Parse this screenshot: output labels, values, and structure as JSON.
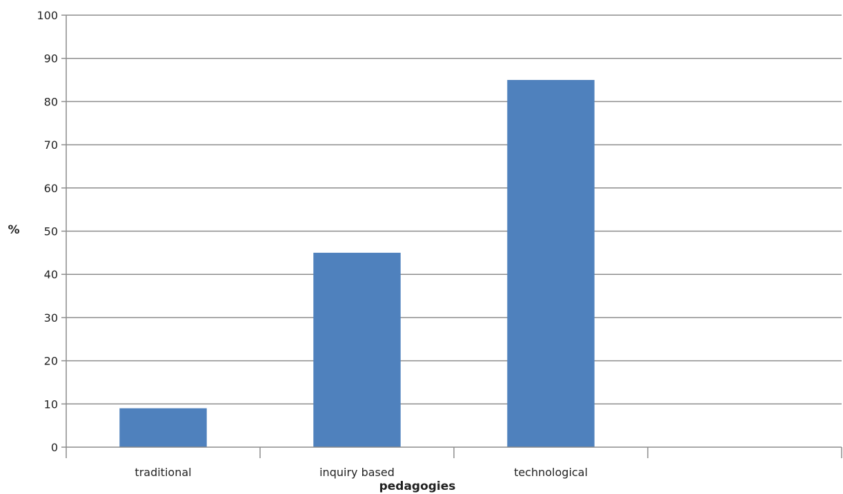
{
  "chart_data": {
    "type": "bar",
    "title": "",
    "xlabel": "pedagogies",
    "ylabel": "%",
    "categories": [
      "traditional",
      "inquiry based",
      "technological",
      ""
    ],
    "values": [
      9,
      45,
      85,
      null
    ],
    "ylim": [
      0,
      100
    ],
    "yticks": [
      "0",
      "10",
      "20",
      "30",
      "40",
      "50",
      "60",
      "70",
      "80",
      "90",
      "100"
    ],
    "grid": true,
    "legend": "none",
    "bar_color": "#4f81bd"
  }
}
